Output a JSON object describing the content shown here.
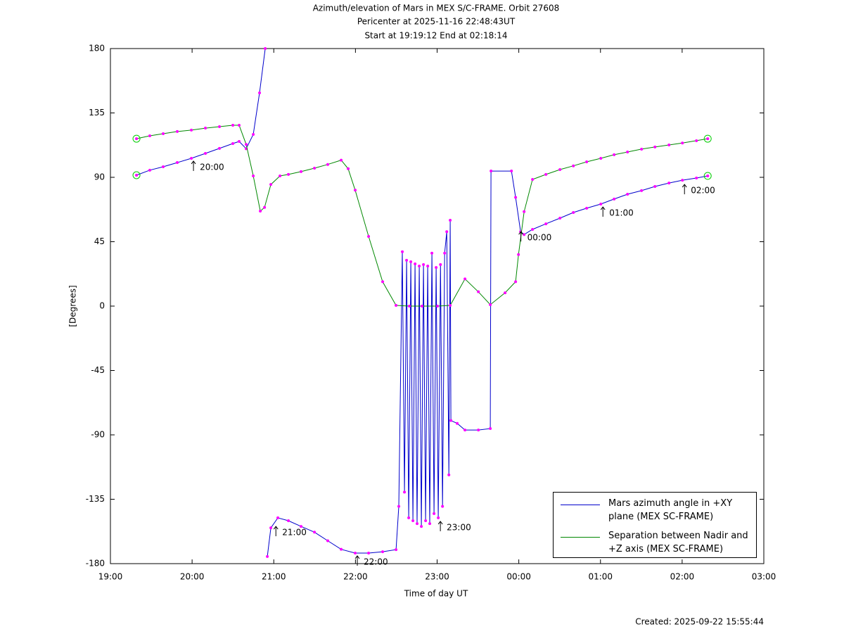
{
  "chart_data": {
    "type": "line",
    "title": "Azimuth/elevation of Mars in MEX S/C-FRAME.  Orbit 27608",
    "subtitle": "Pericenter at 2025-11-16 22:48:43UT",
    "subtitle_2": "Start at 19:19:12 End at 02:18:14",
    "xlabel": "Time of day UT",
    "ylabel": "[Degrees]",
    "footer": "Created: 2025-09-22 15:55:44",
    "xlim": [
      19,
      27
    ],
    "xticks": [
      {
        "value": 19,
        "label": "19:00"
      },
      {
        "value": 20,
        "label": "20:00"
      },
      {
        "value": 21,
        "label": "21:00"
      },
      {
        "value": 22,
        "label": "22:00"
      },
      {
        "value": 23,
        "label": "23:00"
      },
      {
        "value": 24,
        "label": "00:00"
      },
      {
        "value": 25,
        "label": "01:00"
      },
      {
        "value": 26,
        "label": "02:00"
      },
      {
        "value": 27,
        "label": "03:00"
      }
    ],
    "ylim": [
      -180,
      180
    ],
    "yticks": [
      -180,
      -135,
      -90,
      -45,
      0,
      45,
      90,
      135,
      180
    ],
    "grid": false,
    "legend": "lower right",
    "marker_color": "#ff00ff",
    "endpoint_color": "#00cc00",
    "series": [
      {
        "name": "Mars azimuth angle in +XY plane (MEX SC-FRAME)",
        "color": "#0000cc",
        "x": [
          19.319,
          19.482,
          19.646,
          19.818,
          19.991,
          20.163,
          20.335,
          20.499,
          20.576,
          20.662,
          20.749,
          20.826,
          20.895,
          20.91,
          20.921,
          20.964,
          21.05,
          21.179,
          21.334,
          21.498,
          21.661,
          21.825,
          21.997,
          22.161,
          22.333,
          22.497,
          22.531,
          22.574,
          22.6,
          22.626,
          22.652,
          22.678,
          22.704,
          22.73,
          22.755,
          22.781,
          22.807,
          22.833,
          22.859,
          22.885,
          22.91,
          22.936,
          22.962,
          22.988,
          23.014,
          23.041,
          23.066,
          23.092,
          23.118,
          23.144,
          23.16,
          23.169,
          23.246,
          23.341,
          23.505,
          23.651,
          23.66,
          23.91,
          23.961,
          24.022,
          24.065,
          24.168,
          24.332,
          24.504,
          24.668,
          24.831,
          25.004,
          25.167,
          25.331,
          25.503,
          25.667,
          25.839,
          26.003,
          26.175,
          26.313
        ],
        "values": [
          91.5,
          95,
          97.4,
          100.3,
          103.3,
          106.7,
          110.2,
          113.6,
          115.1,
          110,
          120,
          149,
          180,
          null,
          -175,
          -155,
          -148,
          -150,
          -154,
          -158,
          -164,
          -170,
          -172.6,
          -172.6,
          -171.7,
          -170.2,
          -140,
          38,
          -130,
          32,
          -148,
          31,
          -150,
          29.5,
          -152,
          28,
          -154,
          29,
          -150,
          28,
          -152,
          37,
          -145,
          27,
          -148,
          29,
          -140,
          37,
          52,
          -118,
          60,
          -80,
          -82,
          -86.6,
          -86.6,
          -85.6,
          94.4,
          94.4,
          76,
          52,
          50,
          53.6,
          57.5,
          61.5,
          65.4,
          68.4,
          71.3,
          74.8,
          78.2,
          80.7,
          83.6,
          86,
          88,
          89.5,
          91
        ]
      },
      {
        "name": "Separation between Nadir and +Z axis (MEX SC-FRAME)",
        "color": "#008800",
        "x": [
          19.319,
          19.482,
          19.646,
          19.818,
          19.991,
          20.163,
          20.335,
          20.499,
          20.576,
          20.662,
          20.749,
          20.835,
          20.887,
          20.964,
          21.076,
          21.179,
          21.334,
          21.498,
          21.661,
          21.825,
          21.911,
          21.997,
          22.161,
          22.333,
          22.497,
          22.66,
          22.815,
          23.005,
          23.16,
          23.341,
          23.505,
          23.651,
          23.832,
          23.961,
          23.996,
          24.065,
          24.168,
          24.332,
          24.504,
          24.668,
          24.831,
          25.004,
          25.167,
          25.331,
          25.503,
          25.667,
          25.839,
          26.003,
          26.175,
          26.313
        ],
        "values": [
          117,
          119,
          120.5,
          122,
          123,
          124.4,
          125.4,
          126.4,
          126.4,
          113,
          91,
          66.4,
          69,
          85,
          91,
          92,
          94,
          96.4,
          99,
          102,
          96,
          81,
          48.7,
          17,
          0.5,
          0,
          0,
          0,
          0.5,
          19,
          10,
          1,
          9.3,
          17,
          36,
          66,
          88.5,
          92,
          95.4,
          98,
          100.8,
          103.3,
          105.8,
          107.7,
          109.7,
          111.2,
          112.6,
          114,
          115.6,
          117
        ]
      }
    ],
    "annotations": [
      {
        "text": "20:00",
        "x": 19.991,
        "y": 103.3
      },
      {
        "text": "21:00",
        "x": 21.0,
        "y": -152
      },
      {
        "text": "22:00",
        "x": 21.997,
        "y": -172.6
      },
      {
        "text": "23:00",
        "x": 23.014,
        "y": -148.5
      },
      {
        "text": "00:00",
        "x": 24.0,
        "y": 54
      },
      {
        "text": "01:00",
        "x": 25.004,
        "y": 71.3
      },
      {
        "text": "02:00",
        "x": 26.003,
        "y": 87
      }
    ]
  }
}
